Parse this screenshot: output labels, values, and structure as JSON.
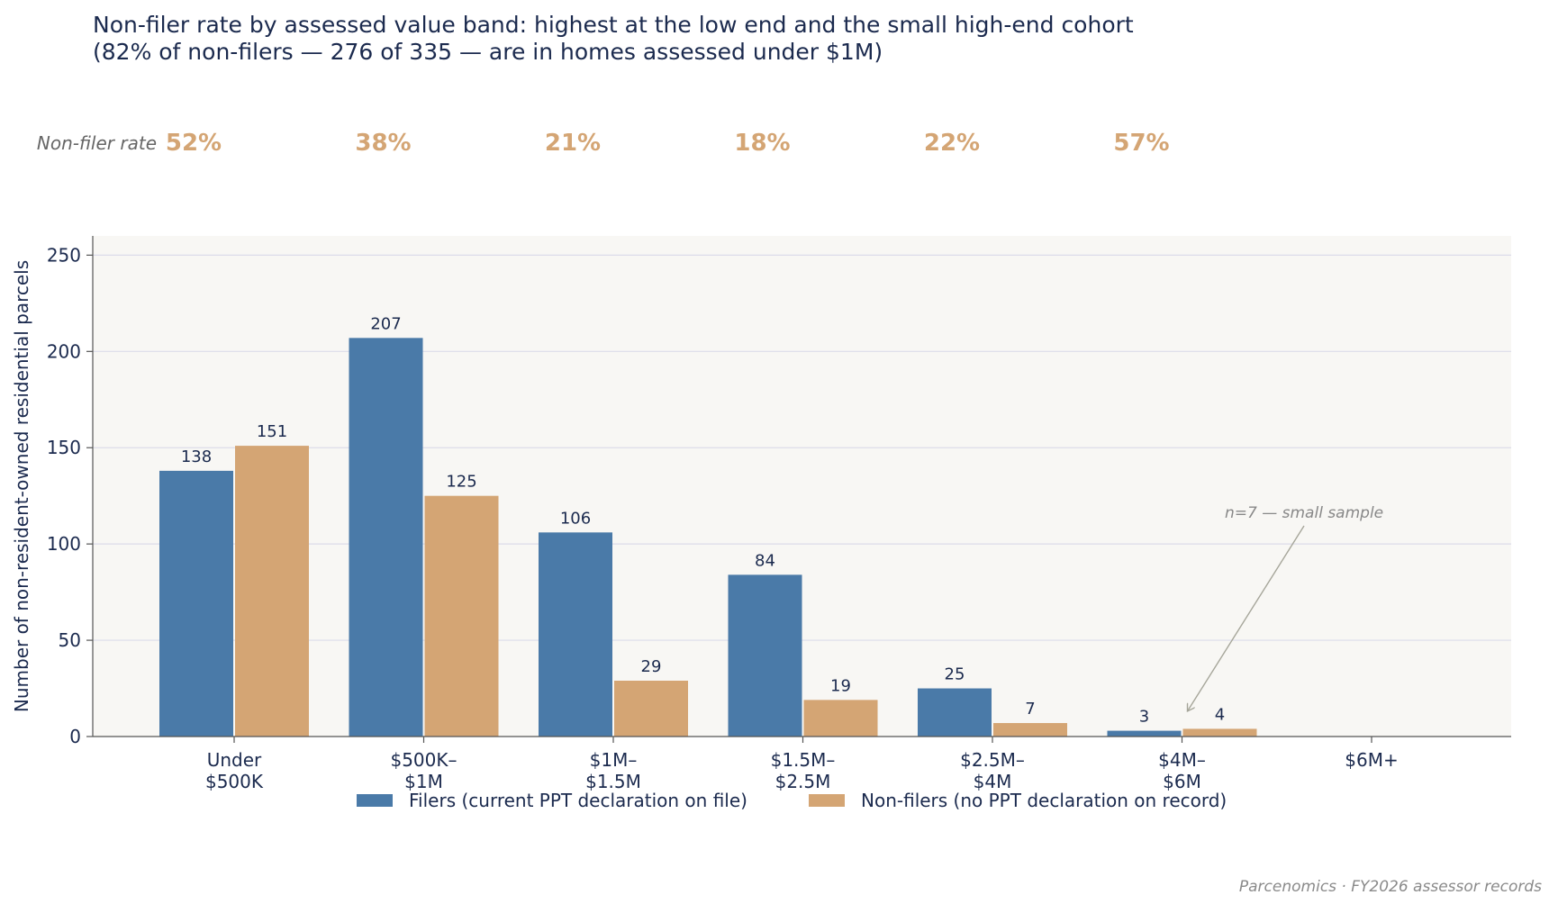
{
  "chart_data": {
    "type": "bar",
    "title_lines": [
      "Non-filer rate by assessed value band: highest at the low end and the small high-end cohort",
      "(82% of non-filers — 276 of 335 — are in homes assessed under $1M)"
    ],
    "rate_row_label": "Non-filer rate",
    "categories": [
      [
        "Under",
        "$500K"
      ],
      [
        "$500K–",
        "$1M"
      ],
      [
        "$1M–",
        "$1.5M"
      ],
      [
        "$1.5M–",
        "$2.5M"
      ],
      [
        "$2.5M–",
        "$4M"
      ],
      [
        "$4M–",
        "$6M"
      ],
      [
        "$6M+"
      ]
    ],
    "rates": [
      "52%",
      "38%",
      "21%",
      "18%",
      "22%",
      "57%"
    ],
    "series": [
      {
        "name": "Filers (current PPT declaration on file)",
        "color": "#4a7aa8",
        "values": [
          138,
          207,
          106,
          84,
          25,
          3,
          null
        ]
      },
      {
        "name": "Non-filers (no PPT declaration on record)",
        "color": "#d4a574",
        "values": [
          151,
          125,
          29,
          19,
          7,
          4,
          null
        ]
      }
    ],
    "ylabel": "Number of non-resident-owned residential parcels",
    "xlabel": "",
    "ylim": [
      0,
      260
    ],
    "yticks": [
      0,
      50,
      100,
      150,
      200,
      250
    ],
    "grid": true,
    "legend_position": "bottom-center",
    "annotation": {
      "text": "n=7 — small sample",
      "category_index": 5,
      "value": 8
    },
    "source": "Parcenomics · FY2026 assessor records"
  },
  "colors": {
    "text": "#1b2a4e",
    "plot_bg": "#f8f7f4",
    "grid": "#dcdcea",
    "rate": "#d4a574",
    "annotation": "#888888"
  }
}
